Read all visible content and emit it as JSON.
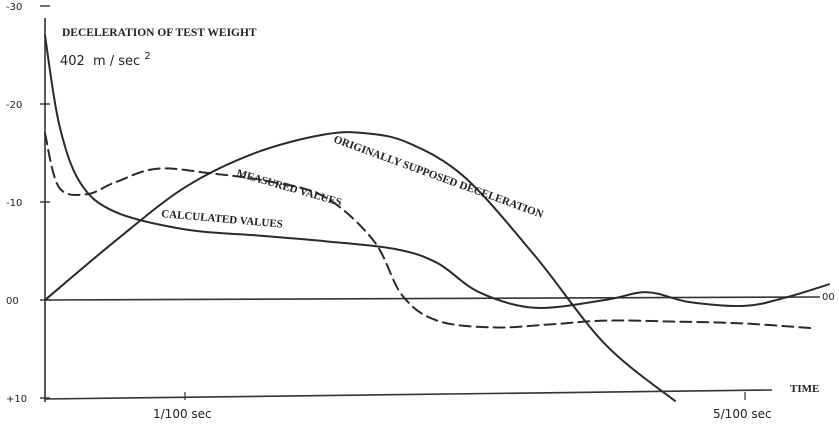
{
  "chart_data": {
    "type": "line",
    "title": "DECELERATION OF TEST WEIGHT",
    "subtitle_value": "402",
    "subtitle_unit": "m / sec",
    "subtitle_exp": "2",
    "xlabel": "TIME",
    "x_unit": "1/100 sec",
    "xlim": [
      0,
      5.6
    ],
    "ylim": [
      -30,
      10
    ],
    "y_ticks": [
      {
        "value": -30,
        "label": "-30"
      },
      {
        "value": -20,
        "label": "-20"
      },
      {
        "value": -10,
        "label": "-10"
      },
      {
        "value": 0,
        "label": "00"
      },
      {
        "value": 10,
        "label": "+10"
      }
    ],
    "x_ticks": [
      {
        "value": 1,
        "label": "1/100 sec"
      },
      {
        "value": 5,
        "label": "5/100 sec"
      }
    ],
    "zero_label_right": "00",
    "series": [
      {
        "name": "ORIGINALLY SUPPOSED DECELERATION",
        "style": "solid",
        "points": [
          [
            0,
            0
          ],
          [
            0.5,
            -6
          ],
          [
            1.0,
            -11.5
          ],
          [
            1.5,
            -15
          ],
          [
            2.0,
            -16.9
          ],
          [
            2.3,
            -17
          ],
          [
            2.6,
            -16
          ],
          [
            3.0,
            -12.5
          ],
          [
            3.5,
            -4.5
          ],
          [
            4.0,
            4.5
          ],
          [
            4.5,
            10.3
          ]
        ]
      },
      {
        "name": "MEASURED VALUES",
        "style": "dashed",
        "points": [
          [
            0,
            -17
          ],
          [
            0.1,
            -11.5
          ],
          [
            0.3,
            -10.8
          ],
          [
            0.5,
            -12
          ],
          [
            0.8,
            -13.4
          ],
          [
            1.2,
            -12.9
          ],
          [
            1.6,
            -12.1
          ],
          [
            2.0,
            -10.5
          ],
          [
            2.35,
            -6
          ],
          [
            2.55,
            -0.5
          ],
          [
            2.8,
            2.1
          ],
          [
            3.2,
            2.8
          ],
          [
            3.6,
            2.5
          ],
          [
            4.0,
            2.1
          ],
          [
            4.5,
            2.2
          ],
          [
            5.0,
            2.4
          ],
          [
            5.5,
            2.9
          ]
        ]
      },
      {
        "name": "CALCULATED VALUES",
        "style": "solid",
        "points": [
          [
            0,
            -27
          ],
          [
            0.1,
            -18
          ],
          [
            0.25,
            -12
          ],
          [
            0.5,
            -9
          ],
          [
            1.0,
            -7.2
          ],
          [
            1.5,
            -6.6
          ],
          [
            2.0,
            -6
          ],
          [
            2.5,
            -5.2
          ],
          [
            2.8,
            -3.8
          ],
          [
            3.1,
            -0.8
          ],
          [
            3.5,
            0.8
          ],
          [
            4.0,
            0
          ],
          [
            4.3,
            -0.8
          ],
          [
            4.6,
            0.2
          ],
          [
            5.0,
            0.6
          ],
          [
            5.3,
            -0.3
          ],
          [
            5.6,
            -1.6
          ]
        ]
      }
    ],
    "annotations": [
      {
        "text": "ORIGINALLY SUPPOSED DECELERATION"
      },
      {
        "text": "MEASURED VALUES"
      },
      {
        "text": "CALCULATED VALUES"
      }
    ],
    "grid": false,
    "legend": "none"
  }
}
